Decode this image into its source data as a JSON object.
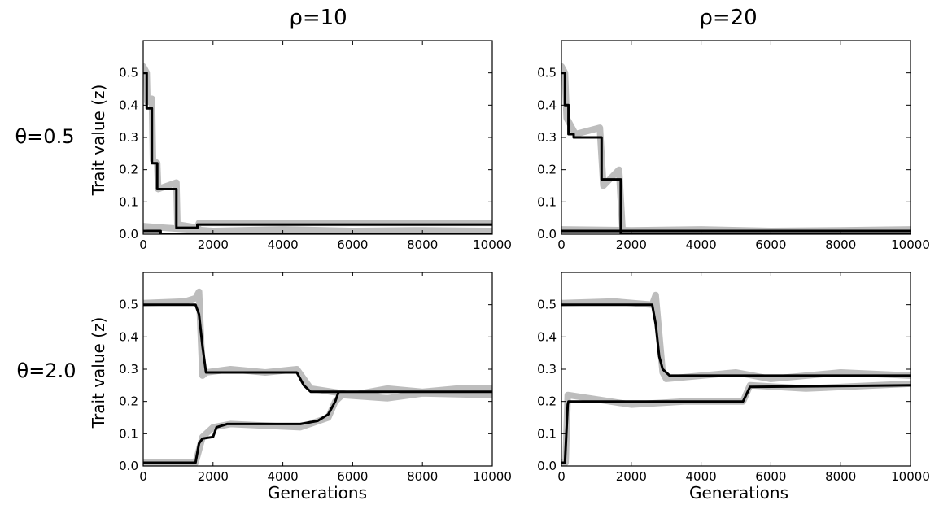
{
  "figure": {
    "col_titles": [
      "ρ=10",
      "ρ=20"
    ],
    "row_titles": [
      "θ=0.5",
      "θ=2.0"
    ],
    "ylabel": "Trait value (z)",
    "xlabel": "Generations"
  },
  "chart_data": [
    {
      "type": "line",
      "panel": "θ=0.5, ρ=10",
      "xlim": [
        0,
        10000
      ],
      "ylim": [
        0,
        0.6
      ],
      "xticks": [
        0,
        2000,
        4000,
        6000,
        8000,
        10000
      ],
      "yticks": [
        0.0,
        0.1,
        0.2,
        0.3,
        0.4,
        0.5
      ],
      "series": [
        {
          "style": "mean",
          "x": [
            0,
            100,
            100,
            250,
            250,
            400,
            400,
            950,
            950,
            1550,
            1550,
            10000
          ],
          "y": [
            0.5,
            0.5,
            0.39,
            0.39,
            0.22,
            0.22,
            0.14,
            0.14,
            0.02,
            0.02,
            0.03,
            0.03
          ]
        },
        {
          "style": "mean",
          "x": [
            0,
            500,
            500,
            10000
          ],
          "y": [
            0.01,
            0.01,
            0.0,
            0.0
          ]
        },
        {
          "style": "replicate",
          "x": [
            0,
            100,
            120,
            250,
            280,
            400,
            430,
            950,
            980,
            1550,
            1600,
            10000
          ],
          "y": [
            0.52,
            0.5,
            0.41,
            0.42,
            0.23,
            0.22,
            0.14,
            0.16,
            0.03,
            0.02,
            0.035,
            0.035
          ]
        },
        {
          "style": "replicate",
          "x": [
            0,
            600,
            2000,
            4000,
            6000,
            8000,
            10000
          ],
          "y": [
            0.025,
            0.02,
            0.01,
            0.015,
            0.01,
            0.012,
            0.01
          ]
        }
      ]
    },
    {
      "type": "line",
      "panel": "θ=0.5, ρ=20",
      "xlim": [
        0,
        10000
      ],
      "ylim": [
        0,
        0.6
      ],
      "xticks": [
        0,
        2000,
        4000,
        6000,
        8000,
        10000
      ],
      "yticks": [
        0.0,
        0.1,
        0.2,
        0.3,
        0.4,
        0.5
      ],
      "series": [
        {
          "style": "mean",
          "x": [
            0,
            100,
            100,
            200,
            200,
            350,
            350,
            1150,
            1150,
            1700,
            1700,
            10000
          ],
          "y": [
            0.5,
            0.5,
            0.4,
            0.4,
            0.31,
            0.31,
            0.3,
            0.3,
            0.17,
            0.17,
            0.0,
            0.0
          ]
        },
        {
          "style": "mean",
          "x": [
            0,
            10000
          ],
          "y": [
            0.01,
            0.01
          ]
        },
        {
          "style": "replicate",
          "x": [
            0,
            100,
            150,
            400,
            1100,
            1200,
            1650,
            1750,
            10000
          ],
          "y": [
            0.52,
            0.5,
            0.36,
            0.31,
            0.33,
            0.15,
            0.2,
            0.01,
            0.01
          ]
        },
        {
          "style": "replicate",
          "x": [
            0,
            2000,
            4000,
            6000,
            8000,
            10000
          ],
          "y": [
            0.015,
            0.012,
            0.015,
            0.01,
            0.012,
            0.015
          ]
        }
      ]
    },
    {
      "type": "line",
      "panel": "θ=2.0, ρ=10",
      "xlim": [
        0,
        10000
      ],
      "ylim": [
        0,
        0.6
      ],
      "xticks": [
        0,
        2000,
        4000,
        6000,
        8000,
        10000
      ],
      "yticks": [
        0.0,
        0.1,
        0.2,
        0.3,
        0.4,
        0.5
      ],
      "series": [
        {
          "style": "mean",
          "x": [
            0,
            1500,
            1600,
            1700,
            1800,
            4400,
            4600,
            4800,
            10000
          ],
          "y": [
            0.5,
            0.5,
            0.47,
            0.37,
            0.29,
            0.29,
            0.25,
            0.23,
            0.23
          ]
        },
        {
          "style": "mean",
          "x": [
            0,
            1500,
            1600,
            1700,
            2000,
            2100,
            2400,
            4500,
            5000,
            5300,
            5500,
            5600
          ],
          "y": [
            0.01,
            0.01,
            0.07,
            0.085,
            0.09,
            0.12,
            0.13,
            0.13,
            0.14,
            0.16,
            0.2,
            0.23
          ]
        },
        {
          "style": "replicate",
          "x": [
            0,
            1200,
            1500,
            1600,
            1700,
            1800,
            2500,
            3500,
            4400,
            4800,
            6000,
            7000,
            8000,
            9000,
            10000
          ],
          "y": [
            0.505,
            0.51,
            0.52,
            0.54,
            0.28,
            0.29,
            0.3,
            0.29,
            0.3,
            0.24,
            0.22,
            0.24,
            0.23,
            0.24,
            0.24
          ]
        },
        {
          "style": "replicate",
          "x": [
            0,
            1500,
            1700,
            2000,
            2500,
            4500,
            5300,
            5500,
            5700,
            7000,
            8000,
            10000
          ],
          "y": [
            0.01,
            0.01,
            0.09,
            0.12,
            0.13,
            0.12,
            0.15,
            0.2,
            0.22,
            0.21,
            0.225,
            0.22
          ]
        }
      ]
    },
    {
      "type": "line",
      "panel": "θ=2.0, ρ=20",
      "xlim": [
        0,
        10000
      ],
      "ylim": [
        0,
        0.6
      ],
      "xticks": [
        0,
        2000,
        4000,
        6000,
        8000,
        10000
      ],
      "yticks": [
        0.0,
        0.1,
        0.2,
        0.3,
        0.4,
        0.5
      ],
      "series": [
        {
          "style": "mean",
          "x": [
            0,
            2600,
            2700,
            2800,
            2900,
            3100,
            10000
          ],
          "y": [
            0.5,
            0.5,
            0.44,
            0.34,
            0.3,
            0.28,
            0.28
          ]
        },
        {
          "style": "mean",
          "x": [
            0,
            100,
            180,
            200,
            5200,
            5400,
            10000
          ],
          "y": [
            0.01,
            0.01,
            0.19,
            0.2,
            0.2,
            0.245,
            0.25
          ]
        },
        {
          "style": "replicate",
          "x": [
            0,
            1500,
            2600,
            2700,
            2900,
            3000,
            5000,
            6000,
            8000,
            10000
          ],
          "y": [
            0.505,
            0.51,
            0.5,
            0.53,
            0.29,
            0.27,
            0.29,
            0.27,
            0.29,
            0.28
          ]
        },
        {
          "style": "replicate",
          "x": [
            0,
            120,
            180,
            2000,
            3500,
            5200,
            5400,
            7000,
            10000
          ],
          "y": [
            0.01,
            0.01,
            0.22,
            0.19,
            0.2,
            0.2,
            0.25,
            0.24,
            0.255
          ]
        }
      ]
    }
  ]
}
